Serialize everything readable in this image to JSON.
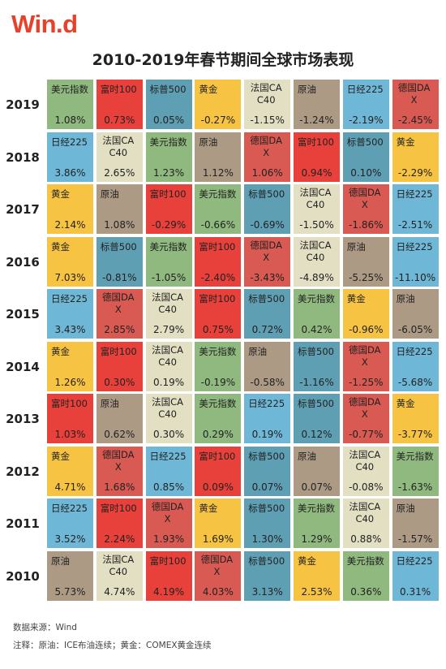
{
  "logo": {
    "text": "Win.d",
    "color": "#e8402a"
  },
  "title": "2010-2019年春节期间全球市场表现",
  "colors": {
    "美元指数": "#8fb97e",
    "富时100": "#e8403a",
    "标普500": "#5f9fb3",
    "黄金": "#f7c342",
    "法国CAC40": "#e2dfc3",
    "原油": "#ad9a85",
    "日经225": "#6fb7d7",
    "德国DAX": "#d85a52"
  },
  "chart_data": {
    "type": "table",
    "rows": [
      {
        "year": "2019",
        "cells": [
          {
            "name": "美元指数",
            "value": "1.08%"
          },
          {
            "name": "富时100",
            "value": "0.73%"
          },
          {
            "name": "标普500",
            "value": "0.05%"
          },
          {
            "name": "黄金",
            "value": "-0.27%"
          },
          {
            "name": "法国CAC40",
            "value": "-1.15%"
          },
          {
            "name": "原油",
            "value": "-1.24%"
          },
          {
            "name": "日经225",
            "value": "-2.19%"
          },
          {
            "name": "德国DAX",
            "value": "-2.45%"
          }
        ]
      },
      {
        "year": "2018",
        "cells": [
          {
            "name": "日经225",
            "value": "3.86%"
          },
          {
            "name": "法国CAC40",
            "value": "2.65%"
          },
          {
            "name": "美元指数",
            "value": "1.23%"
          },
          {
            "name": "原油",
            "value": "1.12%"
          },
          {
            "name": "德国DAX",
            "value": "1.06%"
          },
          {
            "name": "富时100",
            "value": "0.94%"
          },
          {
            "name": "标普500",
            "value": "0.10%"
          },
          {
            "name": "黄金",
            "value": "-2.29%"
          }
        ]
      },
      {
        "year": "2017",
        "cells": [
          {
            "name": "黄金",
            "value": "2.14%"
          },
          {
            "name": "原油",
            "value": "1.08%"
          },
          {
            "name": "富时100",
            "value": "-0.29%"
          },
          {
            "name": "美元指数",
            "value": "-0.66%"
          },
          {
            "name": "标普500",
            "value": "-0.69%"
          },
          {
            "name": "法国CAC40",
            "value": "-1.50%"
          },
          {
            "name": "德国DAX",
            "value": "-1.86%"
          },
          {
            "name": "日经225",
            "value": "-2.51%"
          }
        ]
      },
      {
        "year": "2016",
        "cells": [
          {
            "name": "黄金",
            "value": "7.03%"
          },
          {
            "name": "标普500",
            "value": "-0.81%"
          },
          {
            "name": "美元指数",
            "value": "-1.05%"
          },
          {
            "name": "富时100",
            "value": "-2.40%"
          },
          {
            "name": "德国DAX",
            "value": "-3.43%"
          },
          {
            "name": "法国CAC40",
            "value": "-4.89%"
          },
          {
            "name": "原油",
            "value": "-5.25%"
          },
          {
            "name": "日经225",
            "value": "-11.10%"
          }
        ]
      },
      {
        "year": "2015",
        "cells": [
          {
            "name": "日经225",
            "value": "3.43%"
          },
          {
            "name": "德国DAX",
            "value": "2.85%"
          },
          {
            "name": "法国CAC40",
            "value": "2.79%"
          },
          {
            "name": "富时100",
            "value": "0.75%"
          },
          {
            "name": "标普500",
            "value": "0.72%"
          },
          {
            "name": "美元指数",
            "value": "0.42%"
          },
          {
            "name": "黄金",
            "value": "-0.96%"
          },
          {
            "name": "原油",
            "value": "-6.05%"
          }
        ]
      },
      {
        "year": "2014",
        "cells": [
          {
            "name": "黄金",
            "value": "1.26%"
          },
          {
            "name": "富时100",
            "value": "0.30%"
          },
          {
            "name": "法国CAC40",
            "value": "0.19%"
          },
          {
            "name": "美元指数",
            "value": "-0.19%"
          },
          {
            "name": "原油",
            "value": "-0.58%"
          },
          {
            "name": "标普500",
            "value": "-1.16%"
          },
          {
            "name": "德国DAX",
            "value": "-1.25%"
          },
          {
            "name": "日经225",
            "value": "-5.68%"
          }
        ]
      },
      {
        "year": "2013",
        "cells": [
          {
            "name": "富时100",
            "value": "1.03%"
          },
          {
            "name": "原油",
            "value": "0.62%"
          },
          {
            "name": "法国CAC40",
            "value": "0.30%"
          },
          {
            "name": "美元指数",
            "value": "0.29%"
          },
          {
            "name": "日经225",
            "value": "0.19%"
          },
          {
            "name": "标普500",
            "value": "0.12%"
          },
          {
            "name": "德国DAX",
            "value": "-0.77%"
          },
          {
            "name": "黄金",
            "value": "-3.77%"
          }
        ]
      },
      {
        "year": "2012",
        "cells": [
          {
            "name": "黄金",
            "value": "4.71%"
          },
          {
            "name": "德国DAX",
            "value": "1.68%"
          },
          {
            "name": "日经225",
            "value": "0.85%"
          },
          {
            "name": "富时100",
            "value": "0.09%"
          },
          {
            "name": "标普500",
            "value": "0.07%"
          },
          {
            "name": "原油",
            "value": "0.07%"
          },
          {
            "name": "法国CAC40",
            "value": "-0.08%"
          },
          {
            "name": "美元指数",
            "value": "-1.63%"
          }
        ]
      },
      {
        "year": "2011",
        "cells": [
          {
            "name": "日经225",
            "value": "3.52%"
          },
          {
            "name": "富时100",
            "value": "2.24%"
          },
          {
            "name": "德国DAX",
            "value": "1.93%"
          },
          {
            "name": "黄金",
            "value": "1.69%"
          },
          {
            "name": "标普500",
            "value": "1.30%"
          },
          {
            "name": "美元指数",
            "value": "1.29%"
          },
          {
            "name": "法国CAC40",
            "value": "0.88%"
          },
          {
            "name": "原油",
            "value": "-1.57%"
          }
        ]
      },
      {
        "year": "2010",
        "cells": [
          {
            "name": "原油",
            "value": "5.73%"
          },
          {
            "name": "法国CAC40",
            "value": "4.74%"
          },
          {
            "name": "富时100",
            "value": "4.19%"
          },
          {
            "name": "德国DAX",
            "value": "4.03%"
          },
          {
            "name": "标普500",
            "value": "3.13%"
          },
          {
            "name": "黄金",
            "value": "2.53%"
          },
          {
            "name": "美元指数",
            "value": "0.36%"
          },
          {
            "name": "日经225",
            "value": "0.31%"
          }
        ]
      }
    ]
  },
  "footer": {
    "source": "数据来源：Wind",
    "note": "注释：原油：ICE布油连续；黄金：COMEX黄金连续"
  }
}
